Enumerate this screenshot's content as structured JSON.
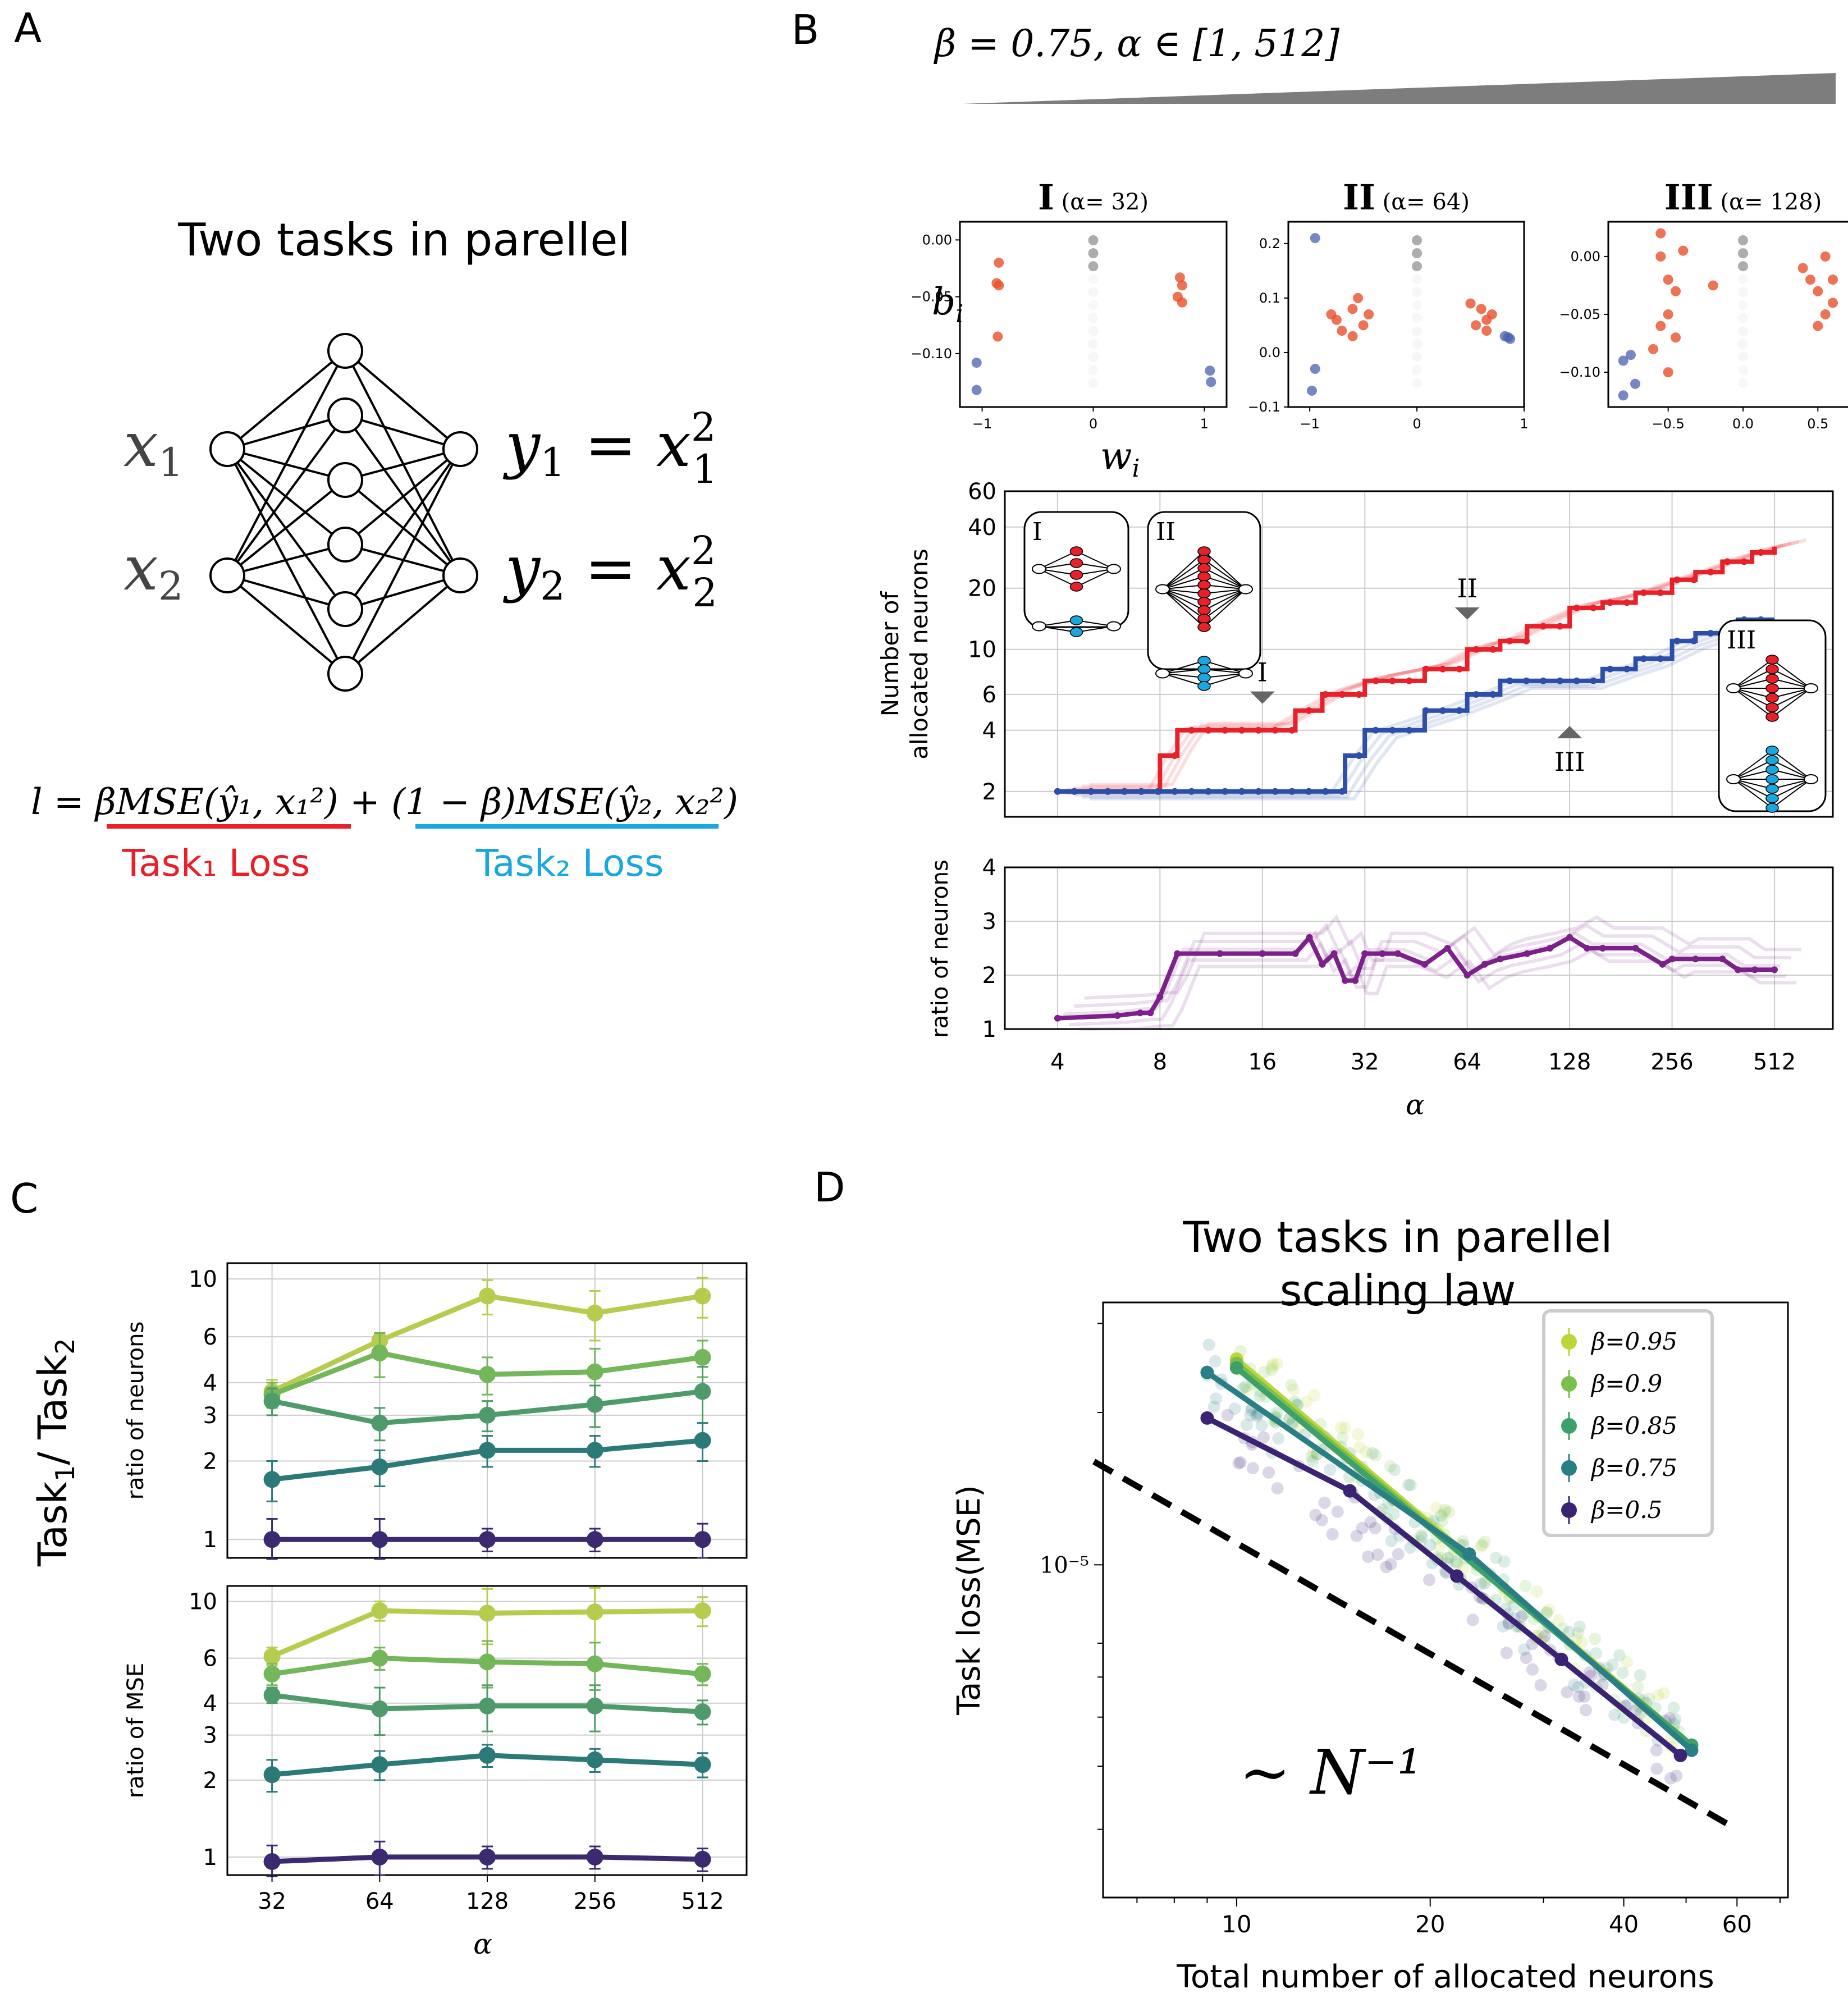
{
  "panel_letters": {
    "a": "A",
    "b": "B",
    "c": "C",
    "d": "D"
  },
  "panel_a": {
    "title": "Two tasks in parellel",
    "inputs": [
      "x1",
      "x2"
    ],
    "outputs": [
      "y1 = x1²",
      "y2 = x2²"
    ],
    "loss": "l = βMSE(ŷ₁, x₁²) + (1 − β)MSE(ŷ₂, x₂²)",
    "task1_loss": "Task₁ Loss",
    "task2_loss": "Task₂ Loss",
    "colors": {
      "task1": "#e8202a",
      "task2": "#1aa7e0"
    }
  },
  "panel_b": {
    "header": "β = 0.75, α ∈ [1, 512]",
    "scatter": [
      {
        "roman": "I",
        "alpha": "(α= 32)",
        "yticks": [
          "0.00",
          "−0.05",
          "−0.10"
        ],
        "xticks": [
          "−1",
          "0",
          "1"
        ]
      },
      {
        "roman": "II",
        "alpha": "(α= 64)",
        "yticks": [
          "0.2",
          "0.1",
          "0.0",
          "−0.1"
        ],
        "xticks": [
          "−1",
          "0",
          "1"
        ]
      },
      {
        "roman": "III",
        "alpha": "(α= 128)",
        "yticks": [
          "0.00",
          "−0.05",
          "−0.10"
        ],
        "xticks": [
          "−0.5",
          "0.0",
          "0.5"
        ]
      }
    ],
    "scatter_ylabel": "b_i",
    "scatter_xlabel": "w_i",
    "neurons_ylabel": [
      "Number of",
      "allocated neurons"
    ],
    "neurons_yticks": [
      "60",
      "40",
      "20",
      "10",
      "6",
      "4",
      "2"
    ],
    "ratio_ylabel": "ratio of neurons",
    "ratio_yticks": [
      "4",
      "3",
      "2",
      "1"
    ],
    "xticks": [
      "4",
      "8",
      "16",
      "32",
      "64",
      "128",
      "256",
      "512"
    ],
    "xlabel": "α",
    "markers": [
      "I",
      "II",
      "III"
    ]
  },
  "panel_c": {
    "ylabel": "Task₁/ Task₂",
    "top_ylabel": "ratio of neurons",
    "bottom_ylabel": "ratio of MSE",
    "yticks": [
      "10",
      "6",
      "4",
      "3",
      "2",
      "1"
    ],
    "xticks": [
      "32",
      "64",
      "128",
      "256",
      "512"
    ],
    "xlabel": "α"
  },
  "panel_d": {
    "title": [
      "Two tasks in parellel",
      "scaling law"
    ],
    "ylabel": "Task loss(MSE)",
    "xlabel": "Total number of allocated neurons",
    "ytick": "10⁻⁵",
    "xticks": [
      "10",
      "20",
      "40",
      "60"
    ],
    "reference": "∼ N⁻¹",
    "legend": [
      "β=0.95",
      "β=0.9",
      "β=0.85",
      "β=0.75",
      "β=0.5"
    ]
  },
  "chart_data": [
    {
      "type": "line",
      "title": "Number of allocated neurons",
      "xscale": "log2",
      "xlabel": "α",
      "ylabel": "Number of allocated neurons",
      "series": [
        {
          "name": "Task1",
          "color": "#e8202a",
          "x": [
            4,
            7,
            8,
            9,
            16,
            20,
            24,
            32,
            48,
            64,
            80,
            96,
            128,
            160,
            200,
            256,
            300,
            360,
            440,
            512
          ],
          "y": [
            2,
            2,
            3,
            4,
            4,
            5,
            6,
            7,
            8,
            10,
            11,
            13,
            16,
            17,
            19,
            22,
            24,
            27,
            30,
            32
          ]
        },
        {
          "name": "Task2",
          "color": "#2d4fa8",
          "x": [
            4,
            24,
            28,
            32,
            48,
            64,
            80,
            128,
            160,
            200,
            256,
            300,
            400,
            512
          ],
          "y": [
            2,
            2,
            3,
            4,
            5,
            6,
            7,
            7,
            8,
            9,
            11,
            12,
            14,
            14
          ]
        }
      ],
      "ylim": [
        1.5,
        60
      ]
    },
    {
      "type": "line",
      "title": "ratio of neurons",
      "xscale": "log2",
      "xlabel": "α",
      "ylabel": "ratio of neurons",
      "series": [
        {
          "name": "ratio",
          "color": "#7b2189",
          "x": [
            4,
            6,
            7,
            7.5,
            8,
            9,
            12,
            16,
            20,
            22,
            24,
            26,
            28,
            30,
            32,
            36,
            40,
            48,
            56,
            64,
            72,
            80,
            96,
            112,
            128,
            144,
            160,
            200,
            240,
            256,
            300,
            360,
            400,
            448,
            512
          ],
          "y": [
            1.2,
            1.25,
            1.3,
            1.3,
            1.6,
            2.4,
            2.4,
            2.4,
            2.4,
            2.7,
            2.2,
            2.4,
            1.9,
            1.9,
            2.4,
            2.4,
            2.4,
            2.2,
            2.5,
            2.0,
            2.2,
            2.3,
            2.4,
            2.5,
            2.7,
            2.5,
            2.5,
            2.5,
            2.2,
            2.3,
            2.3,
            2.3,
            2.1,
            2.1,
            2.1
          ]
        }
      ],
      "ylim": [
        1,
        4
      ]
    },
    {
      "type": "line",
      "title": "ratio of neurons vs α",
      "xscale": "log2",
      "categories": [
        32,
        64,
        128,
        256,
        512
      ],
      "series": [
        {
          "name": "β=0.95",
          "color": "#b5cc4e",
          "values": [
            3.7,
            5.8,
            8.6,
            7.4,
            8.6
          ],
          "err": [
            0.4,
            0.4,
            1.3,
            1.6,
            1.5
          ]
        },
        {
          "name": "β=0.9",
          "color": "#74b65a",
          "values": [
            3.6,
            5.2,
            4.3,
            4.4,
            5.0
          ],
          "err": [
            0.4,
            1.0,
            0.7,
            1.0,
            0.8
          ]
        },
        {
          "name": "β=0.85",
          "color": "#4e9a6a",
          "values": [
            3.4,
            2.8,
            3.0,
            3.3,
            3.7
          ],
          "err": [
            0.4,
            0.4,
            0.4,
            0.6,
            0.9
          ]
        },
        {
          "name": "β=0.75",
          "color": "#2b7a78",
          "values": [
            1.7,
            1.9,
            2.2,
            2.2,
            2.4
          ],
          "err": [
            0.3,
            0.3,
            0.3,
            0.3,
            0.4
          ]
        },
        {
          "name": "β=0.5",
          "color": "#3b2a6f",
          "values": [
            1.0,
            1.0,
            1.0,
            1.0,
            1.0
          ],
          "err": [
            0.2,
            0.2,
            0.1,
            0.1,
            0.15
          ]
        }
      ],
      "ylim": [
        0.85,
        11.5
      ]
    },
    {
      "type": "line",
      "title": "ratio of MSE vs α",
      "xscale": "log2",
      "categories": [
        32,
        64,
        128,
        256,
        512
      ],
      "series": [
        {
          "name": "β=0.95",
          "color": "#b5cc4e",
          "values": [
            6.1,
            9.2,
            9.0,
            9.1,
            9.2
          ],
          "err": [
            0.5,
            0.8,
            2.2,
            2.2,
            1.2
          ]
        },
        {
          "name": "β=0.9",
          "color": "#74b65a",
          "values": [
            5.2,
            6.0,
            5.8,
            5.7,
            5.2
          ],
          "err": [
            0.5,
            0.6,
            1.2,
            1.2,
            0.5
          ]
        },
        {
          "name": "β=0.85",
          "color": "#4e9a6a",
          "values": [
            4.3,
            3.8,
            3.9,
            3.9,
            3.7
          ],
          "err": [
            0.3,
            0.8,
            0.8,
            0.8,
            0.4
          ]
        },
        {
          "name": "β=0.75",
          "color": "#2b7a78",
          "values": [
            2.1,
            2.3,
            2.5,
            2.4,
            2.3
          ],
          "err": [
            0.3,
            0.3,
            0.25,
            0.25,
            0.25
          ]
        },
        {
          "name": "β=0.5",
          "color": "#3b2a6f",
          "values": [
            0.96,
            1.0,
            1.0,
            1.0,
            0.98
          ],
          "err": [
            0.15,
            0.15,
            0.1,
            0.1,
            0.1
          ]
        }
      ],
      "ylim": [
        0.85,
        11.5
      ]
    },
    {
      "type": "line",
      "title": "Two tasks in parellel scaling law",
      "xscale": "log",
      "yscale": "log",
      "xlabel": "Total number of allocated neurons",
      "ylabel": "Task loss(MSE)",
      "series": [
        {
          "name": "β=0.95",
          "color": "#bcd63a",
          "x": [
            10,
            51
          ],
          "y": [
            2.55e-05,
            4.4e-06
          ]
        },
        {
          "name": "β=0.9",
          "color": "#7ac04a",
          "x": [
            10,
            51
          ],
          "y": [
            2.5e-05,
            4.4e-06
          ]
        },
        {
          "name": "β=0.85",
          "color": "#3ea06a",
          "x": [
            10,
            51
          ],
          "y": [
            2.45e-05,
            4.4e-06
          ]
        },
        {
          "name": "β=0.75",
          "color": "#2a7f85",
          "x": [
            9,
            23,
            51
          ],
          "y": [
            2.4e-05,
            1.05e-05,
            4.3e-06
          ]
        },
        {
          "name": "β=0.5",
          "color": "#3b2373",
          "x": [
            9,
            15,
            22,
            32,
            49
          ],
          "y": [
            1.95e-05,
            1.4e-05,
            9.5e-06,
            6.5e-06,
            4.2e-06
          ]
        }
      ],
      "reference": {
        "label": "∼ N⁻¹",
        "x": [
          6,
          60
        ],
        "y": [
          1.6e-05,
          3e-06
        ]
      }
    }
  ]
}
